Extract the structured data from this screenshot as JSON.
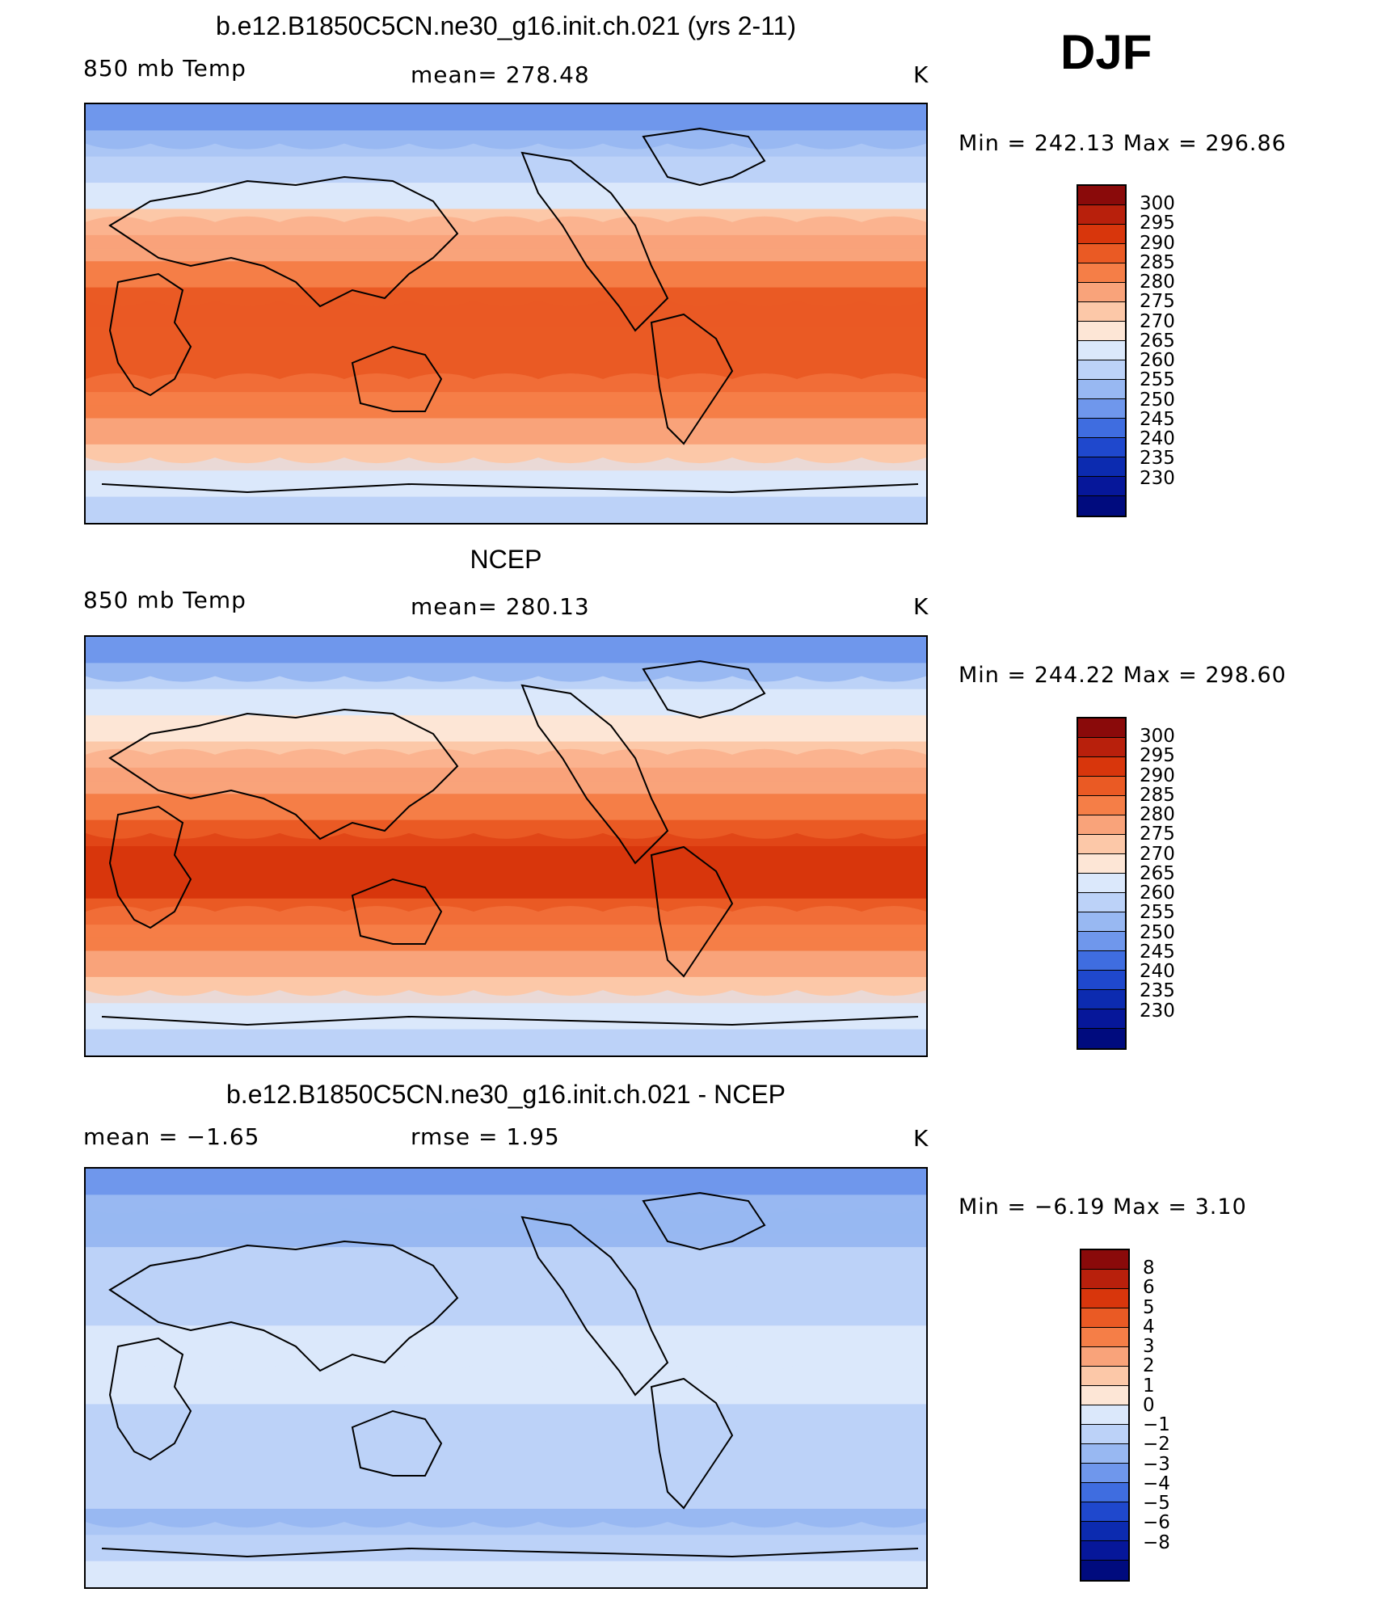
{
  "season": "DJF",
  "panels": [
    {
      "title": "b.e12.B1850C5CN.ne30_g16.init.ch.021 (yrs 2-11)",
      "left_label": "850 mb Temp",
      "center_label": "mean=  278.48",
      "units": "K",
      "min_max": "Min  =  242.13  Max  =  296.86"
    },
    {
      "title": "NCEP",
      "left_label": "850 mb Temp",
      "center_label": "mean=  280.13",
      "units": "K",
      "min_max": "Min  =  244.22  Max  =  298.60"
    },
    {
      "title": "b.e12.B1850C5CN.ne30_g16.init.ch.021 - NCEP",
      "left_label": "mean  =    −1.65",
      "center_label": "rmse  =     1.95",
      "units": "K",
      "min_max": "Min  =    −6.19  Max  =     3.10"
    }
  ],
  "chart_data": [
    {
      "type": "heatmap",
      "title": "b.e12.B1850C5CN.ne30_g16.init.ch.021 (yrs 2-11)",
      "variable": "850 mb Temp",
      "units": "K",
      "mean": 278.48,
      "min": 242.13,
      "max": 296.86,
      "colorbar_labels": [
        "300",
        "295",
        "290",
        "285",
        "280",
        "275",
        "270",
        "265",
        "260",
        "255",
        "250",
        "245",
        "240",
        "235",
        "230"
      ],
      "colorbar_colors": [
        "#8a0a0a",
        "#b8200c",
        "#d8360c",
        "#ea5a24",
        "#f57e47",
        "#f9a37a",
        "#fcc8a8",
        "#fde6d6",
        "#dbe8fb",
        "#bcd2f8",
        "#98b8f2",
        "#6f97ec",
        "#3f6de0",
        "#1f48cd",
        "#0c2bb0",
        "#06179a",
        "#000b7e"
      ],
      "zonal_band_values_K_north_to_south": [
        247,
        252,
        258,
        264,
        270,
        276,
        283,
        287,
        289,
        289,
        287,
        282,
        276,
        270,
        263,
        256
      ]
    },
    {
      "type": "heatmap",
      "title": "NCEP",
      "variable": "850 mb Temp",
      "units": "K",
      "mean": 280.13,
      "min": 244.22,
      "max": 298.6,
      "colorbar_labels": [
        "300",
        "295",
        "290",
        "285",
        "280",
        "275",
        "270",
        "265",
        "260",
        "255",
        "250",
        "245",
        "240",
        "235",
        "230"
      ],
      "colorbar_colors": [
        "#8a0a0a",
        "#b8200c",
        "#d8360c",
        "#ea5a24",
        "#f57e47",
        "#f9a37a",
        "#fcc8a8",
        "#fde6d6",
        "#dbe8fb",
        "#bcd2f8",
        "#98b8f2",
        "#6f97ec",
        "#3f6de0",
        "#1f48cd",
        "#0c2bb0",
        "#06179a",
        "#000b7e"
      ],
      "zonal_band_values_K_north_to_south": [
        249,
        254,
        260,
        266,
        272,
        278,
        284,
        288,
        290,
        290,
        288,
        283,
        277,
        271,
        264,
        258
      ]
    },
    {
      "type": "heatmap",
      "title": "b.e12.B1850C5CN.ne30_g16.init.ch.021 - NCEP",
      "variable": "difference",
      "units": "K",
      "mean": -1.65,
      "rmse": 1.95,
      "min": -6.19,
      "max": 3.1,
      "colorbar_labels": [
        "8",
        "6",
        "5",
        "4",
        "3",
        "2",
        "1",
        "0",
        "−1",
        "−2",
        "−3",
        "−4",
        "−5",
        "−6",
        "−8"
      ],
      "colorbar_colors": [
        "#8a0a0a",
        "#b8200c",
        "#d8360c",
        "#ea5a24",
        "#f57e47",
        "#f9a37a",
        "#fcc8a8",
        "#fde6d6",
        "#dbe8fb",
        "#bcd2f8",
        "#98b8f2",
        "#6f97ec",
        "#3f6de0",
        "#1f48cd",
        "#0c2bb0",
        "#06179a",
        "#000b7e"
      ],
      "zonal_band_values_K_north_to_south": [
        -3.5,
        -2.8,
        -2.2,
        -1.8,
        -1.5,
        -1.2,
        -1.0,
        -0.8,
        -1.0,
        -1.2,
        -1.4,
        -1.6,
        -2.0,
        -2.5,
        -1.5,
        -0.5
      ]
    }
  ]
}
